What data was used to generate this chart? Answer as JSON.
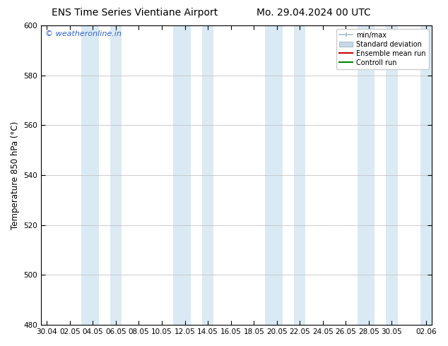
{
  "title_left": "ENS Time Series Vientiane Airport",
  "title_right": "Mo. 29.04.2024 00 UTC",
  "ylabel": "Temperature 850 hPa (°C)",
  "watermark": "© weatheronline.in",
  "ylim": [
    480,
    600
  ],
  "yticks": [
    480,
    500,
    520,
    540,
    560,
    580,
    600
  ],
  "xtick_labels": [
    "30.04",
    "02.05",
    "04.05",
    "06.05",
    "08.05",
    "10.05",
    "12.05",
    "14.05",
    "16.05",
    "18.05",
    "20.05",
    "22.05",
    "24.05",
    "26.05",
    "28.05",
    "30.05",
    "02.06"
  ],
  "background_color": "#ffffff",
  "plot_bg_color": "#ffffff",
  "band_color": "#daeaf5",
  "band_color_dark": "#c5dcec",
  "legend_items": [
    {
      "label": "min/max",
      "color": "#a0b8cc",
      "type": "errorbar"
    },
    {
      "label": "Standard deviation",
      "color": "#c0d4e4",
      "type": "box"
    },
    {
      "label": "Ensemble mean run",
      "color": "#cc0000",
      "type": "line"
    },
    {
      "label": "Controll run",
      "color": "#008800",
      "type": "line"
    }
  ],
  "title_fontsize": 10,
  "tick_fontsize": 7.5,
  "ylabel_fontsize": 8.5,
  "watermark_fontsize": 8,
  "legend_fontsize": 7
}
